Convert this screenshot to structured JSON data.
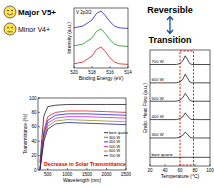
{
  "annotations": [
    "Major V5+",
    "Minor V4+",
    "Reversible",
    "Transition",
    "Decrease in Solar Transmittance"
  ],
  "chart_data": [
    {
      "type": "line",
      "title": "V 2p3/2",
      "x_label": "Binding Energy (eV)",
      "y_label": "Intensity (a.u.)",
      "x": [
        520,
        519,
        518,
        517.5,
        517,
        516.5,
        516,
        515.5,
        515,
        514
      ],
      "series": [
        {
          "color": "#cc0000",
          "values": [
            0.7,
            1.0,
            2.0,
            3.1,
            3.5,
            2.7,
            1.7,
            1.0,
            0.7,
            0.6
          ]
        },
        {
          "color": "#008800",
          "values": [
            3.7,
            4.0,
            5.0,
            6.1,
            6.5,
            5.7,
            4.7,
            4.0,
            3.7,
            3.6
          ]
        },
        {
          "color": "#0000cc",
          "values": [
            6.7,
            7.0,
            8.0,
            9.1,
            9.5,
            8.7,
            7.7,
            7.0,
            6.7,
            6.6
          ]
        }
      ],
      "xlim": [
        520,
        514
      ],
      "ylim": [
        0,
        10
      ],
      "xticks": [
        520,
        518,
        516,
        514
      ],
      "tick_labels": "x"
    },
    {
      "type": "line",
      "x_label": "Wavelength (nm)",
      "y_label": "Transmittance (%)",
      "x": [
        300,
        350,
        400,
        500,
        700,
        1000,
        1500,
        2000,
        2500
      ],
      "series": [
        {
          "name": "bare quartz",
          "color": "#000000",
          "values": [
            10,
            45,
            75,
            88,
            90,
            91,
            91,
            91,
            91
          ]
        },
        {
          "name": "300 W",
          "color": "#e00000",
          "values": [
            2,
            30,
            55,
            74,
            80,
            82,
            82,
            81,
            80
          ]
        },
        {
          "name": "400 W",
          "color": "#0000e0",
          "values": [
            1,
            27,
            50,
            69,
            76,
            78,
            78,
            77,
            76
          ]
        },
        {
          "name": "500 W",
          "color": "#d000d0",
          "values": [
            1,
            24,
            46,
            65,
            72,
            74,
            74,
            73,
            72
          ]
        },
        {
          "name": "600 W",
          "color": "#808000",
          "values": [
            0,
            22,
            43,
            61,
            68,
            70,
            69,
            68,
            67
          ]
        },
        {
          "name": "700 W",
          "color": "#000080",
          "values": [
            0,
            20,
            40,
            57,
            64,
            66,
            65,
            64,
            63
          ]
        }
      ],
      "xlim": [
        250,
        2500
      ],
      "ylim": [
        0,
        100
      ],
      "xticks": [
        500,
        1000,
        1500,
        2000,
        2500
      ],
      "yticks": [
        0,
        20,
        40,
        60,
        80,
        100
      ],
      "legend": "right"
    },
    {
      "type": "line",
      "x_label": "Temperature (°C)",
      "y_label": "Endo. Heat Flow (a.u.)",
      "x": [
        20,
        30,
        40,
        50,
        55,
        60,
        64,
        67,
        70,
        73,
        76,
        80,
        90,
        100
      ],
      "series": [
        {
          "name": "700 W",
          "color": "#000000",
          "values": [
            10.5,
            10.5,
            10.5,
            10.5,
            10.5,
            10.6,
            10.9,
            11.4,
            11.0,
            10.6,
            10.5,
            10.5,
            10.5,
            10.5
          ]
        },
        {
          "name": "600 W",
          "color": "#000000",
          "values": [
            8.6,
            8.6,
            8.6,
            8.6,
            8.6,
            8.7,
            9.0,
            9.5,
            9.1,
            8.7,
            8.6,
            8.6,
            8.6,
            8.6
          ]
        },
        {
          "name": "500 W",
          "color": "#000000",
          "values": [
            6.7,
            6.7,
            6.7,
            6.7,
            6.7,
            6.8,
            7.1,
            7.5,
            7.2,
            6.8,
            6.7,
            6.7,
            6.7,
            6.7
          ]
        },
        {
          "name": "400 W",
          "color": "#000000",
          "values": [
            4.8,
            4.8,
            4.8,
            4.8,
            4.8,
            4.9,
            5.1,
            5.5,
            5.2,
            4.9,
            4.8,
            4.8,
            4.8,
            4.8
          ]
        },
        {
          "name": "300 W",
          "color": "#000000",
          "values": [
            2.9,
            2.9,
            2.9,
            2.9,
            2.9,
            3.0,
            3.2,
            3.5,
            3.3,
            3.0,
            2.9,
            2.9,
            2.9,
            2.9
          ]
        },
        {
          "name": "bare quartz",
          "color": "#000000",
          "values": [
            0.9,
            0.9,
            0.9,
            0.9,
            0.9,
            0.9,
            0.9,
            0.9,
            0.9,
            0.9,
            0.9,
            0.9,
            0.9,
            0.9
          ]
        }
      ],
      "xlim": [
        20,
        100
      ],
      "ylim": [
        0,
        12
      ],
      "xticks": [
        20,
        40,
        60,
        80,
        100
      ],
      "tick_labels": "x",
      "legend": "inline",
      "highlight_x": [
        60,
        78
      ],
      "color": "#e00000"
    }
  ]
}
